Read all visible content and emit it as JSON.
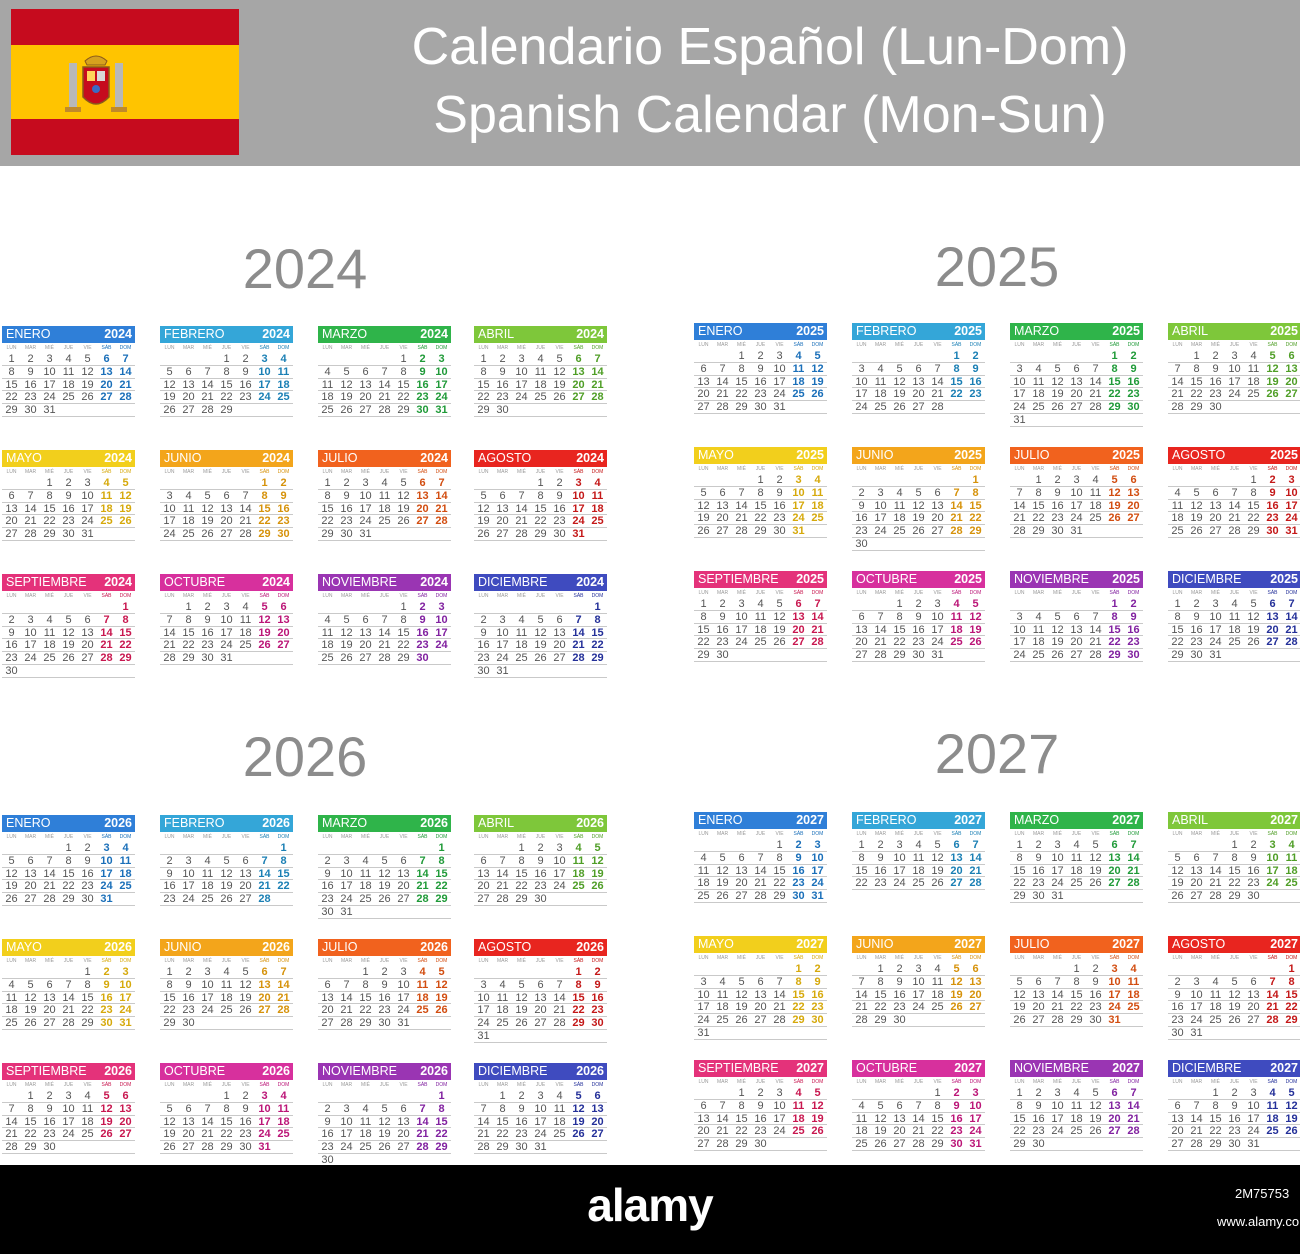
{
  "header": {
    "title_es": "Calendario Español (Lun-Dom)",
    "title_en": "Spanish Calendar (Mon-Sun)",
    "background": "#a6a6a6"
  },
  "flag": {
    "name": "spain-flag",
    "red": "#c60b1e",
    "yellow": "#ffc400"
  },
  "weekday_labels": [
    "LUN",
    "MAR",
    "MIÉ",
    "JUE",
    "VIE",
    "SÁB",
    "DOM"
  ],
  "month_names": [
    "ENERO",
    "FEBRERO",
    "MARZO",
    "ABRIL",
    "MAYO",
    "JUNIO",
    "JULIO",
    "AGOSTO",
    "SEPTIEMBRE",
    "OCTUBRE",
    "NOVIEMBRE",
    "DICIEMBRE"
  ],
  "month_colors": [
    "#2f7fd8",
    "#34a6d8",
    "#2fb44a",
    "#7ec73a",
    "#f2cf1c",
    "#f3a51b",
    "#f1621e",
    "#e8251f",
    "#e4327a",
    "#d7309d",
    "#9a35b3",
    "#3f4bbf"
  ],
  "weekend_colors": [
    "#1a6fb9",
    "#1a7fb4",
    "#1f9a38",
    "#4f9e26",
    "#d6a90b",
    "#d6920a",
    "#d24d10",
    "#c41818",
    "#c8174f",
    "#bb1577",
    "#8121a0",
    "#243099"
  ],
  "years": [
    {
      "label": "2024",
      "start_weekday": 0,
      "leap": true
    },
    {
      "label": "2025",
      "start_weekday": 2,
      "leap": false
    },
    {
      "label": "2026",
      "start_weekday": 3,
      "leap": false
    },
    {
      "label": "2027",
      "start_weekday": 4,
      "leap": false
    }
  ],
  "footer": {
    "brand": "alamy",
    "image_id": "2M75753",
    "url": "www.alamy.com"
  }
}
